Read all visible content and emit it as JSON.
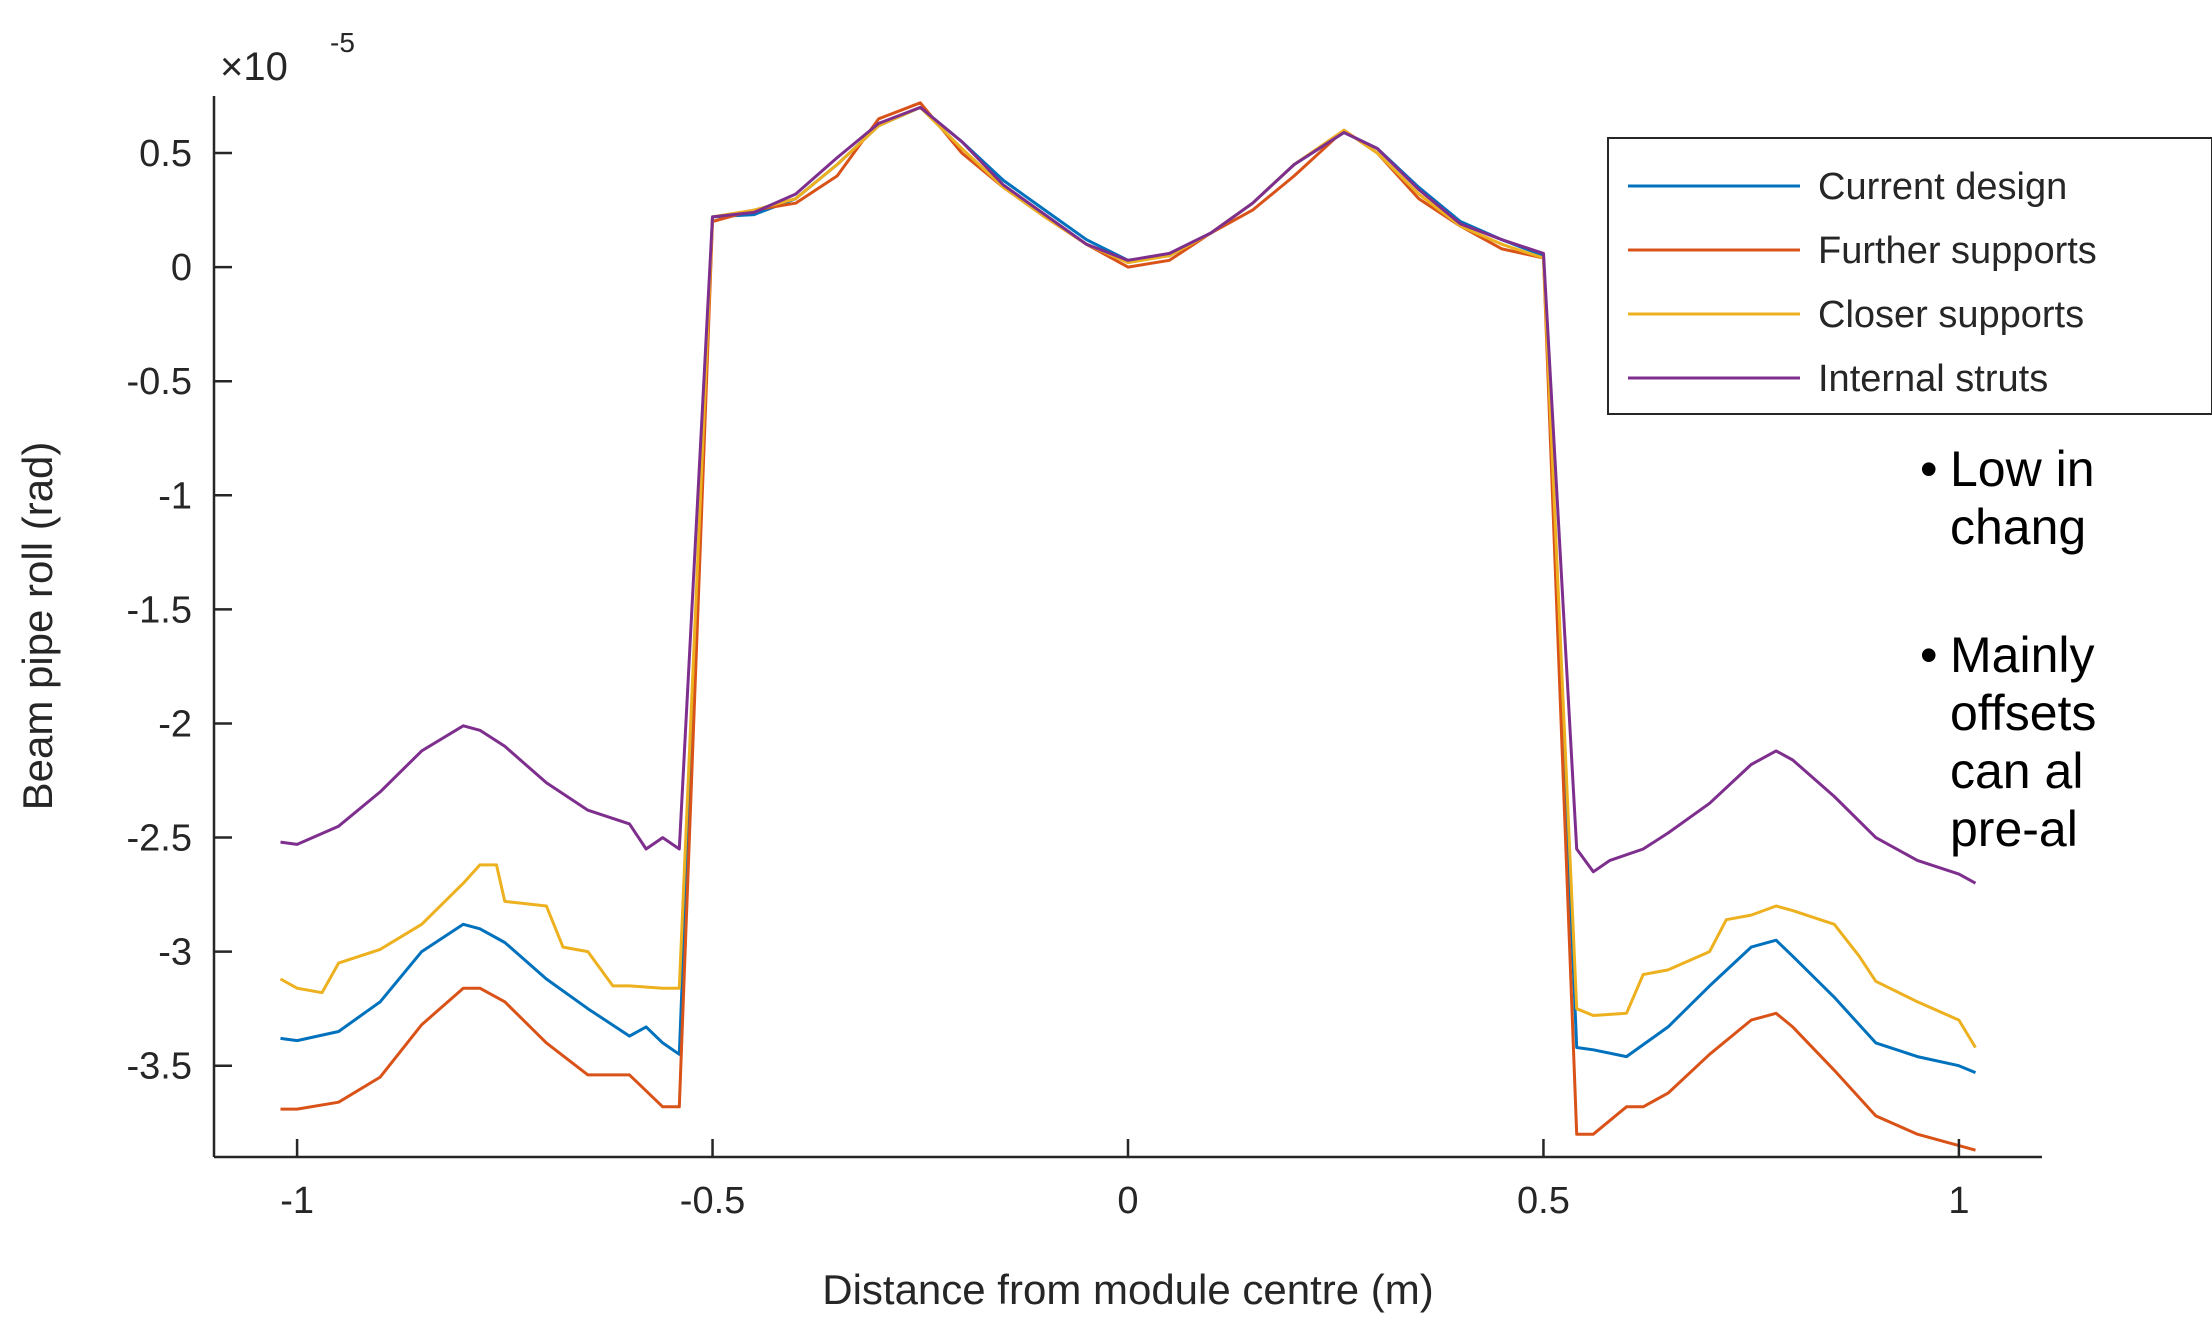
{
  "chart_data": {
    "type": "line",
    "title": "",
    "xlabel": "Distance from module centre (m)",
    "ylabel": "Beam pipe roll (rad)",
    "y_exponent_label": "×10",
    "y_exponent": "-5",
    "xlim": [
      -1.1,
      1.1
    ],
    "ylim": [
      -3.9,
      0.75
    ],
    "x_ticks": [
      -1,
      -0.5,
      0,
      0.5,
      1
    ],
    "x_tick_labels": [
      "-1",
      "-0.5",
      "0",
      "0.5",
      "1"
    ],
    "y_ticks": [
      0.5,
      0,
      -0.5,
      -1,
      -1.5,
      -2,
      -2.5,
      -3,
      -3.5
    ],
    "y_tick_labels": [
      "0.5",
      "0",
      "-0.5",
      "-1",
      "-1.5",
      "-2",
      "-2.5",
      "-3",
      "-3.5"
    ],
    "grid": false,
    "legend_position": "top-right",
    "series": [
      {
        "name": "Current design",
        "color": "#0072BD",
        "x": [
          -1.02,
          -1.0,
          -0.95,
          -0.9,
          -0.85,
          -0.8,
          -0.78,
          -0.75,
          -0.7,
          -0.65,
          -0.6,
          -0.58,
          -0.56,
          -0.54,
          -0.5,
          -0.45,
          -0.4,
          -0.35,
          -0.3,
          -0.25,
          -0.2,
          -0.15,
          -0.1,
          -0.05,
          0.0,
          0.05,
          0.1,
          0.15,
          0.2,
          0.26,
          0.3,
          0.35,
          0.4,
          0.45,
          0.5,
          0.54,
          0.56,
          0.6,
          0.65,
          0.7,
          0.75,
          0.78,
          0.8,
          0.85,
          0.9,
          0.95,
          1.0,
          1.02
        ],
        "y": [
          -3.38,
          -3.39,
          -3.35,
          -3.22,
          -3.0,
          -2.88,
          -2.9,
          -2.96,
          -3.12,
          -3.25,
          -3.37,
          -3.33,
          -3.4,
          -3.45,
          0.22,
          0.23,
          0.3,
          0.45,
          0.62,
          0.7,
          0.55,
          0.38,
          0.25,
          0.12,
          0.03,
          0.05,
          0.15,
          0.28,
          0.45,
          0.59,
          0.52,
          0.35,
          0.2,
          0.12,
          0.05,
          -3.42,
          -3.43,
          -3.46,
          -3.33,
          -3.15,
          -2.98,
          -2.95,
          -3.02,
          -3.2,
          -3.4,
          -3.46,
          -3.5,
          -3.53
        ]
      },
      {
        "name": "Further supports",
        "color": "#D95319",
        "x": [
          -1.02,
          -1.0,
          -0.95,
          -0.9,
          -0.85,
          -0.8,
          -0.78,
          -0.75,
          -0.7,
          -0.65,
          -0.6,
          -0.56,
          -0.54,
          -0.5,
          -0.45,
          -0.4,
          -0.35,
          -0.3,
          -0.25,
          -0.2,
          -0.15,
          -0.1,
          -0.05,
          0.0,
          0.05,
          0.1,
          0.15,
          0.2,
          0.26,
          0.3,
          0.35,
          0.4,
          0.45,
          0.5,
          0.54,
          0.56,
          0.6,
          0.62,
          0.65,
          0.7,
          0.75,
          0.78,
          0.8,
          0.85,
          0.9,
          0.95,
          1.0,
          1.02
        ],
        "y": [
          -3.69,
          -3.69,
          -3.66,
          -3.55,
          -3.32,
          -3.16,
          -3.16,
          -3.22,
          -3.4,
          -3.54,
          -3.54,
          -3.68,
          -3.68,
          0.2,
          0.25,
          0.28,
          0.4,
          0.65,
          0.72,
          0.5,
          0.35,
          0.22,
          0.1,
          0.0,
          0.03,
          0.15,
          0.25,
          0.4,
          0.6,
          0.5,
          0.3,
          0.18,
          0.08,
          0.04,
          -3.8,
          -3.8,
          -3.68,
          -3.68,
          -3.62,
          -3.45,
          -3.3,
          -3.27,
          -3.33,
          -3.52,
          -3.72,
          -3.8,
          -3.85,
          -3.87
        ]
      },
      {
        "name": "Closer supports",
        "color": "#EDB120",
        "x": [
          -1.02,
          -1.0,
          -0.97,
          -0.95,
          -0.9,
          -0.85,
          -0.8,
          -0.78,
          -0.76,
          -0.75,
          -0.7,
          -0.68,
          -0.65,
          -0.62,
          -0.6,
          -0.56,
          -0.54,
          -0.5,
          -0.45,
          -0.4,
          -0.35,
          -0.3,
          -0.25,
          -0.2,
          -0.15,
          -0.1,
          -0.05,
          0.0,
          0.05,
          0.1,
          0.15,
          0.2,
          0.26,
          0.3,
          0.35,
          0.4,
          0.45,
          0.5,
          0.54,
          0.56,
          0.6,
          0.62,
          0.65,
          0.7,
          0.72,
          0.75,
          0.78,
          0.8,
          0.85,
          0.88,
          0.9,
          0.95,
          1.0,
          1.02
        ],
        "y": [
          -3.12,
          -3.16,
          -3.18,
          -3.05,
          -2.99,
          -2.88,
          -2.7,
          -2.62,
          -2.62,
          -2.78,
          -2.8,
          -2.98,
          -3.0,
          -3.15,
          -3.15,
          -3.16,
          -3.16,
          0.22,
          0.25,
          0.3,
          0.45,
          0.62,
          0.7,
          0.52,
          0.35,
          0.22,
          0.1,
          0.02,
          0.05,
          0.15,
          0.28,
          0.45,
          0.6,
          0.5,
          0.32,
          0.18,
          0.1,
          0.04,
          -3.25,
          -3.28,
          -3.27,
          -3.1,
          -3.08,
          -3.0,
          -2.86,
          -2.84,
          -2.8,
          -2.82,
          -2.88,
          -3.02,
          -3.13,
          -3.22,
          -3.3,
          -3.42
        ]
      },
      {
        "name": "Internal struts",
        "color": "#7E2F8E",
        "x": [
          -1.02,
          -1.0,
          -0.95,
          -0.9,
          -0.85,
          -0.8,
          -0.78,
          -0.75,
          -0.7,
          -0.65,
          -0.6,
          -0.58,
          -0.56,
          -0.54,
          -0.5,
          -0.45,
          -0.4,
          -0.35,
          -0.3,
          -0.25,
          -0.2,
          -0.15,
          -0.1,
          -0.05,
          0.0,
          0.05,
          0.1,
          0.15,
          0.2,
          0.26,
          0.3,
          0.35,
          0.4,
          0.45,
          0.5,
          0.54,
          0.56,
          0.58,
          0.62,
          0.65,
          0.7,
          0.75,
          0.78,
          0.8,
          0.85,
          0.9,
          0.95,
          1.0,
          1.02
        ],
        "y": [
          -2.52,
          -2.53,
          -2.45,
          -2.3,
          -2.12,
          -2.01,
          -2.03,
          -2.1,
          -2.26,
          -2.38,
          -2.44,
          -2.55,
          -2.5,
          -2.55,
          0.22,
          0.24,
          0.32,
          0.48,
          0.63,
          0.7,
          0.55,
          0.36,
          0.23,
          0.1,
          0.03,
          0.06,
          0.15,
          0.28,
          0.45,
          0.59,
          0.52,
          0.34,
          0.19,
          0.12,
          0.06,
          -2.55,
          -2.65,
          -2.6,
          -2.55,
          -2.48,
          -2.35,
          -2.18,
          -2.12,
          -2.16,
          -2.32,
          -2.5,
          -2.6,
          -2.66,
          -2.7
        ]
      }
    ]
  },
  "bullets": [
    {
      "symbol": "•",
      "lines": [
        "Low in",
        "chang"
      ]
    },
    {
      "symbol": "•",
      "lines": [
        "Mainly",
        "offsets",
        "can al",
        "pre-al"
      ]
    }
  ]
}
